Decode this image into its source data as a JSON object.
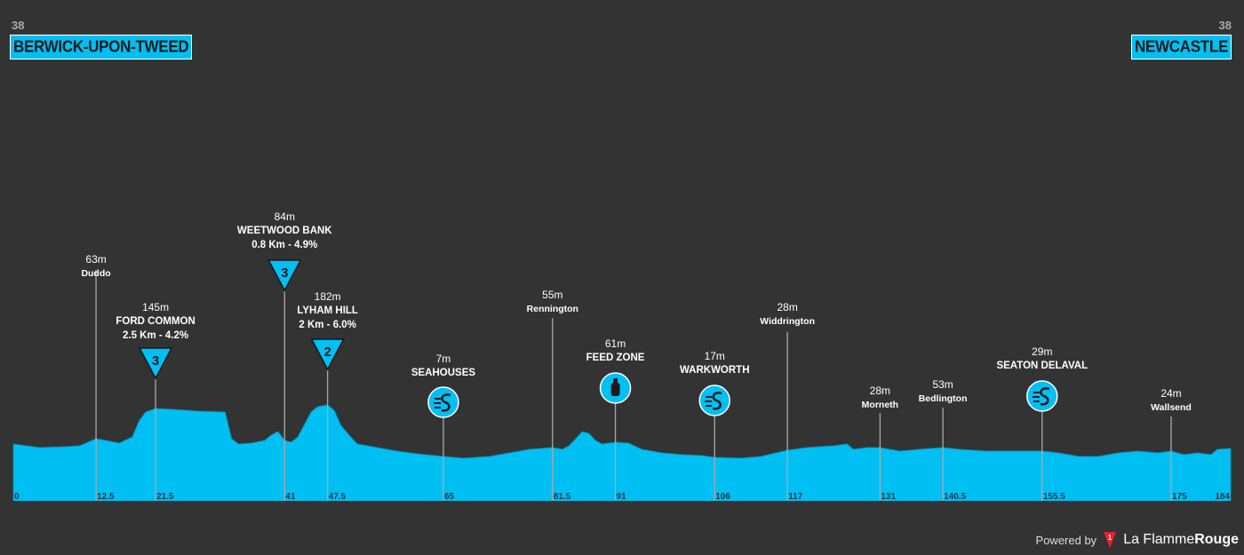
{
  "header": {
    "start": {
      "number": "38",
      "place": "BERWICK-UPON-TWEED"
    },
    "finish": {
      "number": "38",
      "place": "NEWCASTLE"
    }
  },
  "colors": {
    "accent": "#00bff3",
    "background": "#333333",
    "line": "#aaaaaa",
    "text": "#ffffff"
  },
  "chart_data": {
    "type": "area",
    "xlim": [
      0,
      184
    ],
    "profile": [
      [
        0,
        34
      ],
      [
        4,
        30
      ],
      [
        8,
        31
      ],
      [
        10,
        32
      ],
      [
        12.5,
        40
      ],
      [
        14,
        38
      ],
      [
        16,
        35
      ],
      [
        18,
        42
      ],
      [
        19,
        60
      ],
      [
        20,
        70
      ],
      [
        21.5,
        74
      ],
      [
        24,
        73
      ],
      [
        28,
        71
      ],
      [
        32,
        70
      ],
      [
        33,
        40
      ],
      [
        34,
        34
      ],
      [
        36,
        35
      ],
      [
        38,
        38
      ],
      [
        39,
        44
      ],
      [
        40,
        48
      ],
      [
        41,
        38
      ],
      [
        42,
        36
      ],
      [
        43,
        42
      ],
      [
        44,
        56
      ],
      [
        45,
        70
      ],
      [
        46,
        76
      ],
      [
        47.5,
        78
      ],
      [
        48.5,
        72
      ],
      [
        49.5,
        55
      ],
      [
        51,
        42
      ],
      [
        52,
        34
      ],
      [
        55,
        30
      ],
      [
        58,
        26
      ],
      [
        61,
        23
      ],
      [
        65,
        20
      ],
      [
        68,
        18
      ],
      [
        72,
        20
      ],
      [
        75,
        24
      ],
      [
        78,
        28
      ],
      [
        81.5,
        30
      ],
      [
        83,
        28
      ],
      [
        84,
        32
      ],
      [
        85,
        40
      ],
      [
        86,
        48
      ],
      [
        87,
        46
      ],
      [
        88,
        38
      ],
      [
        89,
        34
      ],
      [
        91,
        36
      ],
      [
        93,
        35
      ],
      [
        95,
        28
      ],
      [
        98,
        24
      ],
      [
        101,
        22
      ],
      [
        104,
        21
      ],
      [
        106,
        19
      ],
      [
        110,
        18
      ],
      [
        113,
        20
      ],
      [
        117,
        27
      ],
      [
        120,
        30
      ],
      [
        124,
        32
      ],
      [
        126,
        34
      ],
      [
        127,
        28
      ],
      [
        129,
        30
      ],
      [
        131,
        30
      ],
      [
        134,
        26
      ],
      [
        137,
        28
      ],
      [
        140.5,
        30
      ],
      [
        143,
        28
      ],
      [
        147,
        26
      ],
      [
        150,
        26
      ],
      [
        155.5,
        26
      ],
      [
        158,
        24
      ],
      [
        161,
        20
      ],
      [
        164,
        20
      ],
      [
        167,
        24
      ],
      [
        170,
        26
      ],
      [
        173,
        24
      ],
      [
        175,
        26
      ],
      [
        177,
        22
      ],
      [
        179,
        24
      ],
      [
        181,
        22
      ],
      [
        182,
        28
      ],
      [
        184,
        29
      ]
    ],
    "x_ticks": [
      "0",
      "12.5",
      "21.5",
      "41",
      "47.5",
      "65",
      "81.5",
      "91",
      "106",
      "117",
      "131",
      "140.5",
      "155.5",
      "175",
      "184"
    ],
    "x_tick_values": [
      0,
      12.5,
      21.5,
      41,
      47.5,
      65,
      81.5,
      91,
      106,
      117,
      131,
      140.5,
      155.5,
      175,
      184
    ],
    "markers": [
      {
        "km": 12.5,
        "alt": "63m",
        "name": "Duddo",
        "detail": "",
        "icon": "",
        "icon_label": ""
      },
      {
        "km": 21.5,
        "alt": "145m",
        "name": "FORD COMMON",
        "detail": "2.5 Km - 4.2%",
        "icon": "climb-category",
        "icon_label": "3"
      },
      {
        "km": 41,
        "alt": "84m",
        "name": "WEETWOOD BANK",
        "detail": "0.8 Km - 4.9%",
        "icon": "climb-category",
        "icon_label": "3"
      },
      {
        "km": 47.5,
        "alt": "182m",
        "name": "LYHAM HILL",
        "detail": "2 Km - 6.0%",
        "icon": "climb-category",
        "icon_label": "2"
      },
      {
        "km": 65,
        "alt": "7m",
        "name": "SEAHOUSES",
        "detail": "",
        "icon": "sprint",
        "icon_label": ""
      },
      {
        "km": 81.5,
        "alt": "55m",
        "name": "Rennington",
        "detail": "",
        "icon": "",
        "icon_label": ""
      },
      {
        "km": 91,
        "alt": "61m",
        "name": "FEED ZONE",
        "detail": "",
        "icon": "feed",
        "icon_label": ""
      },
      {
        "km": 106,
        "alt": "17m",
        "name": "WARKWORTH",
        "detail": "",
        "icon": "sprint",
        "icon_label": ""
      },
      {
        "km": 117,
        "alt": "28m",
        "name": "Widdrington",
        "detail": "",
        "icon": "",
        "icon_label": ""
      },
      {
        "km": 131,
        "alt": "28m",
        "name": "Morneth",
        "detail": "",
        "icon": "",
        "icon_label": ""
      },
      {
        "km": 140.5,
        "alt": "53m",
        "name": "Bedlington",
        "detail": "",
        "icon": "",
        "icon_label": ""
      },
      {
        "km": 155.5,
        "alt": "29m",
        "name": "SEATON DELAVAL",
        "detail": "",
        "icon": "sprint",
        "icon_label": ""
      },
      {
        "km": 175,
        "alt": "24m",
        "name": "Wallsend",
        "detail": "",
        "icon": "",
        "icon_label": ""
      }
    ]
  },
  "footer": {
    "powered_by": "Powered by",
    "brand_light": "La Flamme",
    "brand_bold": "Rouge"
  }
}
